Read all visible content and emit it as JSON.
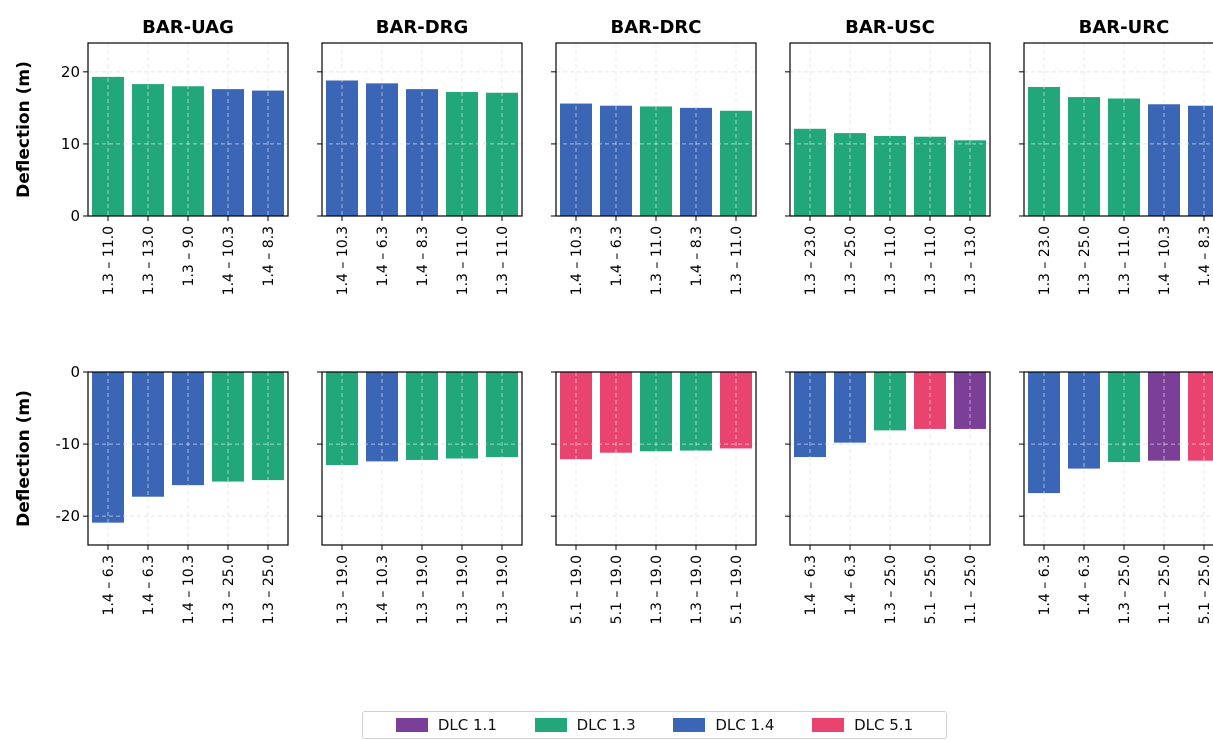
{
  "chart_data": {
    "type": "bar",
    "ylabel": "Deflection (m)",
    "series_colors": {
      "DLC 1.1": "#7b3f98",
      "DLC 1.3": "#22a77a",
      "DLC 1.4": "#3b66b5",
      "DLC 5.1": "#e8446f"
    },
    "legend": [
      "DLC 1.1",
      "DLC 1.3",
      "DLC 1.4",
      "DLC 5.1"
    ],
    "legend_placement": "bottom-center",
    "grid": true,
    "panels": [
      {
        "row": 0,
        "col": 0,
        "title": "BAR-UAG",
        "ylim": [
          0,
          24
        ],
        "yticks": [
          0,
          10,
          20
        ],
        "categories": [
          "1.3 – 11.0",
          "1.3 – 13.0",
          "1.3 – 9.0",
          "1.4 – 10.3",
          "1.4 – 8.3"
        ],
        "values": [
          19.3,
          18.3,
          18.0,
          17.6,
          17.4
        ],
        "dlc": [
          "DLC 1.3",
          "DLC 1.3",
          "DLC 1.3",
          "DLC 1.4",
          "DLC 1.4"
        ]
      },
      {
        "row": 0,
        "col": 1,
        "title": "BAR-DRG",
        "ylim": [
          0,
          24
        ],
        "yticks": [
          0,
          10,
          20
        ],
        "categories": [
          "1.4 – 10.3",
          "1.4 – 6.3",
          "1.4 – 8.3",
          "1.3 – 11.0",
          "1.3 – 11.0"
        ],
        "values": [
          18.8,
          18.4,
          17.6,
          17.2,
          17.1
        ],
        "dlc": [
          "DLC 1.4",
          "DLC 1.4",
          "DLC 1.4",
          "DLC 1.3",
          "DLC 1.3"
        ]
      },
      {
        "row": 0,
        "col": 2,
        "title": "BAR-DRC",
        "ylim": [
          0,
          24
        ],
        "yticks": [
          0,
          10,
          20
        ],
        "categories": [
          "1.4 – 10.3",
          "1.4 – 6.3",
          "1.3 – 11.0",
          "1.4 – 8.3",
          "1.3 – 11.0"
        ],
        "values": [
          15.6,
          15.3,
          15.2,
          15.0,
          14.6
        ],
        "dlc": [
          "DLC 1.4",
          "DLC 1.4",
          "DLC 1.3",
          "DLC 1.4",
          "DLC 1.3"
        ]
      },
      {
        "row": 0,
        "col": 3,
        "title": "BAR-USC",
        "ylim": [
          0,
          24
        ],
        "yticks": [
          0,
          10,
          20
        ],
        "categories": [
          "1.3 – 23.0",
          "1.3 – 25.0",
          "1.3 – 11.0",
          "1.3 – 11.0",
          "1.3 – 13.0"
        ],
        "values": [
          12.1,
          11.5,
          11.1,
          11.0,
          10.5
        ],
        "dlc": [
          "DLC 1.3",
          "DLC 1.3",
          "DLC 1.3",
          "DLC 1.3",
          "DLC 1.3"
        ]
      },
      {
        "row": 0,
        "col": 4,
        "title": "BAR-URC",
        "ylim": [
          0,
          24
        ],
        "yticks": [
          0,
          10,
          20
        ],
        "categories": [
          "1.3 – 23.0",
          "1.3 – 25.0",
          "1.3 – 11.0",
          "1.4 – 10.3",
          "1.4 – 8.3"
        ],
        "values": [
          17.9,
          16.5,
          16.3,
          15.5,
          15.3
        ],
        "dlc": [
          "DLC 1.3",
          "DLC 1.3",
          "DLC 1.3",
          "DLC 1.4",
          "DLC 1.4"
        ]
      },
      {
        "row": 1,
        "col": 0,
        "title": "",
        "ylim": [
          -24,
          0
        ],
        "yticks": [
          -20,
          -10,
          0
        ],
        "categories": [
          "1.4 – 6.3",
          "1.4 – 6.3",
          "1.4 – 10.3",
          "1.3 – 25.0",
          "1.3 – 25.0"
        ],
        "values": [
          -20.9,
          -17.3,
          -15.7,
          -15.2,
          -15.0
        ],
        "dlc": [
          "DLC 1.4",
          "DLC 1.4",
          "DLC 1.4",
          "DLC 1.3",
          "DLC 1.3"
        ]
      },
      {
        "row": 1,
        "col": 1,
        "title": "",
        "ylim": [
          -24,
          0
        ],
        "yticks": [
          -20,
          -10,
          0
        ],
        "categories": [
          "1.3 – 19.0",
          "1.4 – 10.3",
          "1.3 – 19.0",
          "1.3 – 19.0",
          "1.3 – 19.0"
        ],
        "values": [
          -12.9,
          -12.4,
          -12.2,
          -12.0,
          -11.8
        ],
        "dlc": [
          "DLC 1.3",
          "DLC 1.4",
          "DLC 1.3",
          "DLC 1.3",
          "DLC 1.3"
        ]
      },
      {
        "row": 1,
        "col": 2,
        "title": "",
        "ylim": [
          -24,
          0
        ],
        "yticks": [
          -20,
          -10,
          0
        ],
        "categories": [
          "5.1 – 19.0",
          "5.1 – 19.0",
          "1.3 – 19.0",
          "1.3 – 19.0",
          "5.1 – 19.0"
        ],
        "values": [
          -12.1,
          -11.2,
          -11.0,
          -10.9,
          -10.6
        ],
        "dlc": [
          "DLC 5.1",
          "DLC 5.1",
          "DLC 1.3",
          "DLC 1.3",
          "DLC 5.1"
        ]
      },
      {
        "row": 1,
        "col": 3,
        "title": "",
        "ylim": [
          -24,
          0
        ],
        "yticks": [
          -20,
          -10,
          0
        ],
        "categories": [
          "1.4 – 6.3",
          "1.4 – 6.3",
          "1.3 – 25.0",
          "5.1 – 25.0",
          "1.1 – 25.0"
        ],
        "values": [
          -11.8,
          -9.8,
          -8.1,
          -7.9,
          -7.9
        ],
        "dlc": [
          "DLC 1.4",
          "DLC 1.4",
          "DLC 1.3",
          "DLC 5.1",
          "DLC 1.1"
        ]
      },
      {
        "row": 1,
        "col": 4,
        "title": "",
        "ylim": [
          -24,
          0
        ],
        "yticks": [
          -20,
          -10,
          0
        ],
        "categories": [
          "1.4 – 6.3",
          "1.4 – 6.3",
          "1.3 – 25.0",
          "1.1 – 25.0",
          "5.1 – 25.0"
        ],
        "values": [
          -16.8,
          -13.4,
          -12.5,
          -12.3,
          -12.3
        ],
        "dlc": [
          "DLC 1.4",
          "DLC 1.4",
          "DLC 1.3",
          "DLC 1.1",
          "DLC 5.1"
        ]
      }
    ]
  }
}
